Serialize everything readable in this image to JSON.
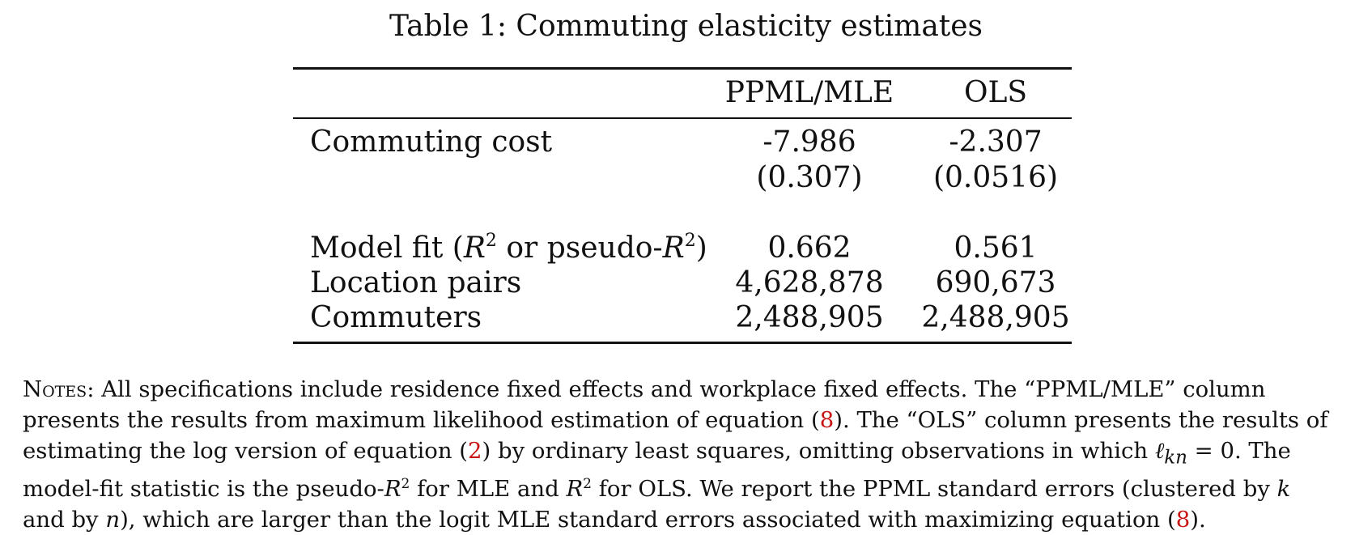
{
  "caption": "Table 1: Commuting elasticity estimates",
  "table": {
    "headers": [
      "",
      "PPML/MLE",
      "OLS"
    ],
    "rows": {
      "commuting_cost": {
        "label": "Commuting cost",
        "ppml": "-7.986",
        "ols": "-2.307"
      },
      "commuting_cost_se": {
        "ppml": "(0.307)",
        "ols": "(0.0516)"
      },
      "model_fit": {
        "label_pre": "Model fit (",
        "label_r": "R",
        "label_sup1": "2",
        "label_mid": " or pseudo-",
        "label_r2": "R",
        "label_sup2": "2",
        "label_post": ")",
        "ppml": "0.662",
        "ols": "0.561"
      },
      "location_pairs": {
        "label": "Location pairs",
        "ppml": "4,628,878",
        "ols": "690,673"
      },
      "commuters": {
        "label": "Commuters",
        "ppml": "2,488,905",
        "ols": "2,488,905"
      }
    }
  },
  "notes": {
    "l1_label": "Notes:",
    "l1": " All specifications include residence fixed effects and workplace fixed effects. The “PPML/MLE” column",
    "l2a": "presents the results from maximum likelihood estimation of equation (",
    "ref8a": "8",
    "l2b": "). The “OLS” column presents the results of",
    "l3a": "estimating the log version of equation (",
    "ref2": "2",
    "l3b": ") by ordinary least squares, omitting observations in which ",
    "l3_ell": "ℓ",
    "l3_sub": "kn",
    "l3c": " = 0. The",
    "l4a": "model-fit statistic is the pseudo-",
    "l4_r1": "R",
    "l4_s1": "2",
    "l4b": " for MLE and ",
    "l4_r2": "R",
    "l4_s2": "2",
    "l4c": " for OLS. We report the PPML standard errors (clustered by ",
    "l4_k": "k",
    "l5a": "and by ",
    "l5_n": "n",
    "l5b": "), which are larger than the logit MLE standard errors associated with maximizing equation (",
    "ref8b": "8",
    "l5c": ")."
  }
}
